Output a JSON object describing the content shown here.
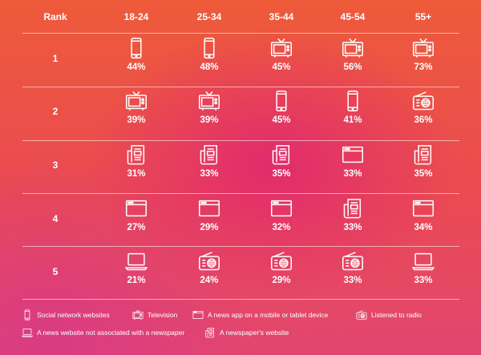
{
  "table": {
    "rank_header": "Rank",
    "columns": [
      "18-24",
      "25-34",
      "35-44",
      "45-54",
      "55+"
    ],
    "rows": [
      {
        "rank": "1",
        "cells": [
          {
            "icon": "phone-icon",
            "value": "44%"
          },
          {
            "icon": "phone-icon",
            "value": "48%"
          },
          {
            "icon": "tv-icon",
            "value": "45%"
          },
          {
            "icon": "tv-icon",
            "value": "56%"
          },
          {
            "icon": "tv-icon",
            "value": "73%"
          }
        ]
      },
      {
        "rank": "2",
        "cells": [
          {
            "icon": "tv-icon",
            "value": "39%"
          },
          {
            "icon": "tv-icon",
            "value": "39%"
          },
          {
            "icon": "phone-icon",
            "value": "45%"
          },
          {
            "icon": "phone-icon",
            "value": "41%"
          },
          {
            "icon": "radio-icon",
            "value": "36%"
          }
        ]
      },
      {
        "rank": "3",
        "cells": [
          {
            "icon": "newspaper-icon",
            "value": "31%"
          },
          {
            "icon": "newspaper-icon",
            "value": "33%"
          },
          {
            "icon": "newspaper-icon",
            "value": "35%"
          },
          {
            "icon": "browser-icon",
            "value": "33%"
          },
          {
            "icon": "newspaper-icon",
            "value": "35%"
          }
        ]
      },
      {
        "rank": "4",
        "cells": [
          {
            "icon": "browser-icon",
            "value": "27%"
          },
          {
            "icon": "browser-icon",
            "value": "29%"
          },
          {
            "icon": "browser-icon",
            "value": "32%"
          },
          {
            "icon": "newspaper-icon",
            "value": "33%"
          },
          {
            "icon": "browser-icon",
            "value": "34%"
          }
        ]
      },
      {
        "rank": "5",
        "cells": [
          {
            "icon": "laptop-icon",
            "value": "21%"
          },
          {
            "icon": "radio-icon",
            "value": "24%"
          },
          {
            "icon": "radio-icon",
            "value": "29%"
          },
          {
            "icon": "radio-icon",
            "value": "33%"
          },
          {
            "icon": "laptop-icon",
            "value": "33%"
          }
        ]
      }
    ]
  },
  "legend": [
    {
      "icon": "phone-icon",
      "label": "Social network websites"
    },
    {
      "icon": "tv-icon",
      "label": "Television"
    },
    {
      "icon": "browser-icon",
      "label": "A news app on a mobile or tablet device"
    },
    {
      "icon": "radio-icon",
      "label": "Listened to radio"
    },
    {
      "icon": "laptop-icon",
      "label": "A news website not associated with a newspaper"
    },
    {
      "icon": "newspaper-icon",
      "label": "A newspaper's website"
    }
  ],
  "colors": {
    "background_top": "#ee5a3a",
    "background_bottom": "#e24670",
    "accent_blob": "#de2078",
    "foreground": "#ffffff"
  }
}
